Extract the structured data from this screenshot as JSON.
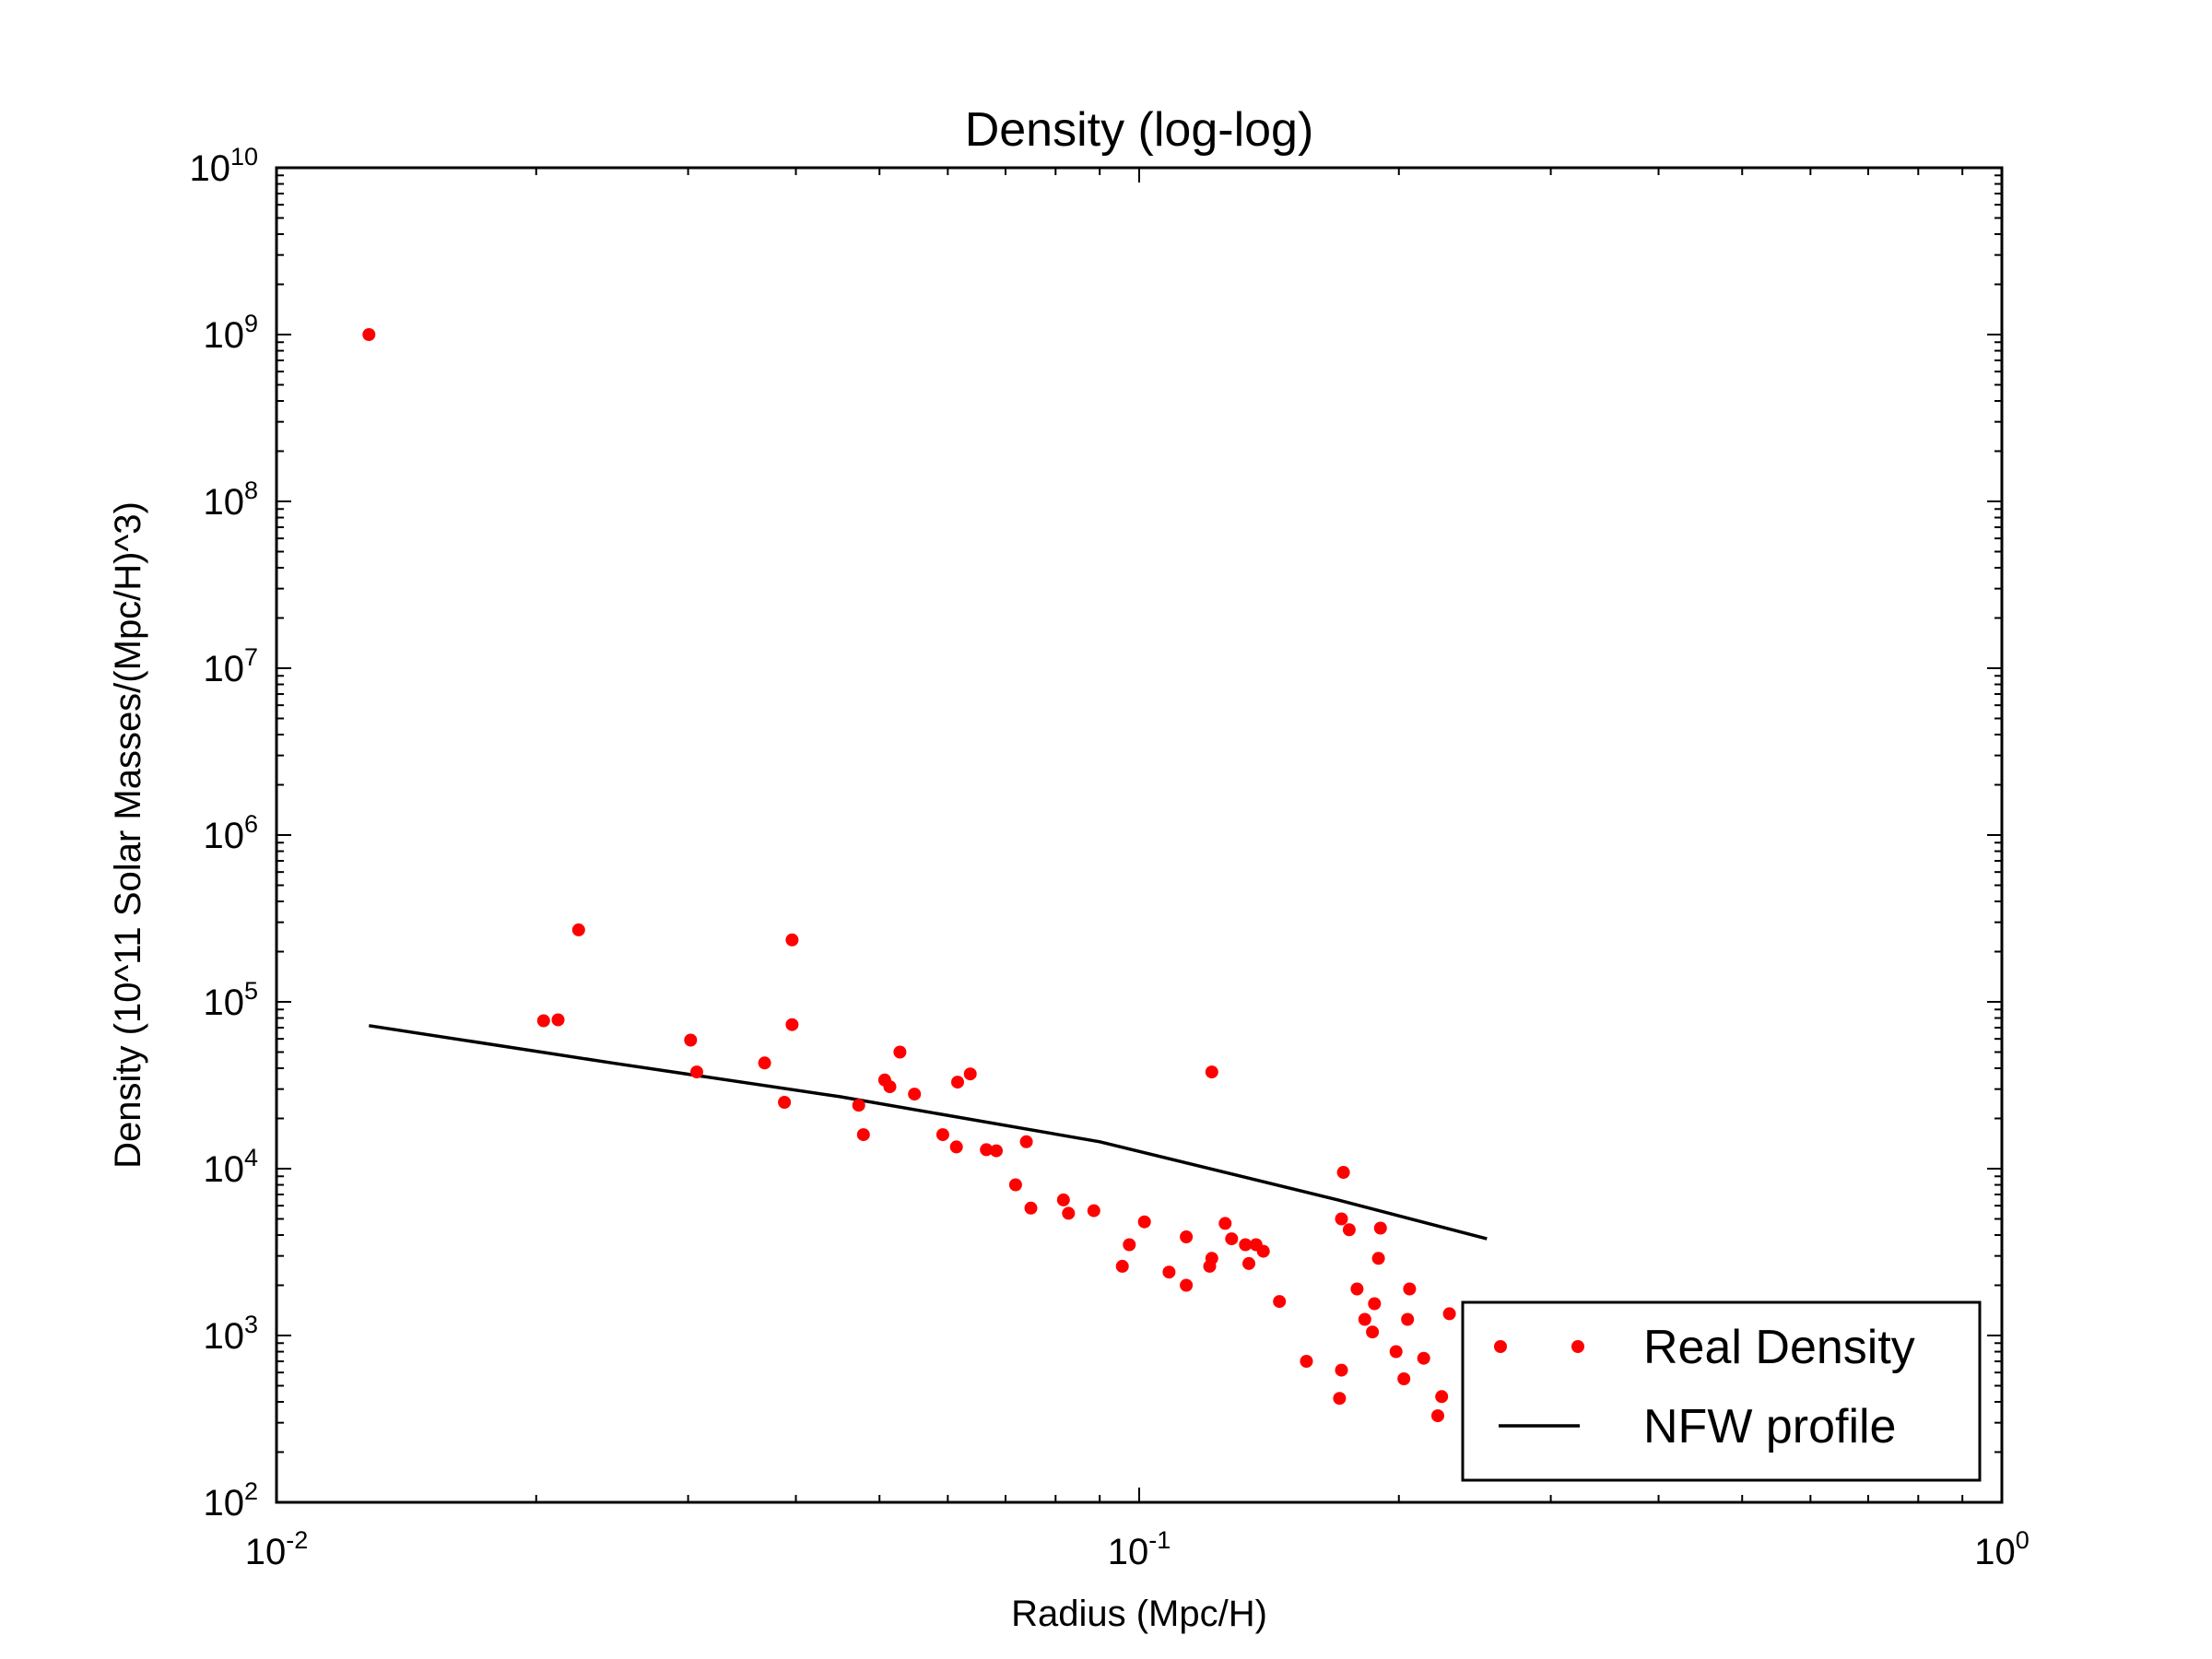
{
  "chart_data": {
    "type": "scatter",
    "title": "Density (log-log)",
    "xlabel": "Radius (Mpc/H)",
    "ylabel": "Density (10^11 Solar Masses/(Mpc/H)^3)",
    "xscale": "log",
    "yscale": "log",
    "xlim": [
      0.01,
      1
    ],
    "ylim": [
      100,
      10000000000
    ],
    "grid": false,
    "legend_position": "bottom-right",
    "x_ticks": [
      {
        "base": "10",
        "exp": "-2",
        "value": 0.01
      },
      {
        "base": "10",
        "exp": "-1",
        "value": 0.1
      },
      {
        "base": "10",
        "exp": "0",
        "value": 1
      }
    ],
    "y_ticks": [
      {
        "base": "10",
        "exp": "2",
        "value": 100
      },
      {
        "base": "10",
        "exp": "3",
        "value": 1000
      },
      {
        "base": "10",
        "exp": "4",
        "value": 10000
      },
      {
        "base": "10",
        "exp": "5",
        "value": 100000
      },
      {
        "base": "10",
        "exp": "6",
        "value": 1000000
      },
      {
        "base": "10",
        "exp": "7",
        "value": 10000000
      },
      {
        "base": "10",
        "exp": "8",
        "value": 100000000
      },
      {
        "base": "10",
        "exp": "9",
        "value": 1000000000
      },
      {
        "base": "10",
        "exp": "10",
        "value": 10000000000
      }
    ],
    "series": [
      {
        "name": "Real Density",
        "kind": "points",
        "color": "#ff0000",
        "points": [
          [
            0.0128,
            1000000000
          ],
          [
            0.0204,
            77000
          ],
          [
            0.0212,
            78000
          ],
          [
            0.0224,
            270000
          ],
          [
            0.0302,
            59000
          ],
          [
            0.0307,
            38000
          ],
          [
            0.0368,
            43000
          ],
          [
            0.0388,
            25000
          ],
          [
            0.0396,
            73000
          ],
          [
            0.0396,
            235000
          ],
          [
            0.0473,
            24000
          ],
          [
            0.0479,
            16000
          ],
          [
            0.0507,
            34000
          ],
          [
            0.0514,
            31000
          ],
          [
            0.0528,
            50000
          ],
          [
            0.0549,
            28000
          ],
          [
            0.0592,
            16000
          ],
          [
            0.0614,
            13500
          ],
          [
            0.0616,
            33000
          ],
          [
            0.0637,
            37000
          ],
          [
            0.0665,
            13000
          ],
          [
            0.0683,
            12800
          ],
          [
            0.074,
            14500
          ],
          [
            0.0719,
            8000
          ],
          [
            0.0749,
            5800
          ],
          [
            0.0817,
            6500
          ],
          [
            0.0828,
            5400
          ],
          [
            0.0886,
            5600
          ],
          [
            0.0956,
            2600
          ],
          [
            0.0974,
            3500
          ],
          [
            0.1014,
            4800
          ],
          [
            0.1083,
            2400
          ],
          [
            0.1134,
            2000
          ],
          [
            0.1134,
            3900
          ],
          [
            0.1207,
            2600
          ],
          [
            0.1214,
            2900
          ],
          [
            0.1214,
            38000
          ],
          [
            0.1258,
            4700
          ],
          [
            0.128,
            3800
          ],
          [
            0.1328,
            3500
          ],
          [
            0.134,
            2700
          ],
          [
            0.1366,
            3500
          ],
          [
            0.1393,
            3200
          ],
          [
            0.1454,
            1600
          ],
          [
            0.1563,
            700
          ],
          [
            0.1707,
            420
          ],
          [
            0.1716,
            620
          ],
          [
            0.1716,
            5000
          ],
          [
            0.1725,
            9500
          ],
          [
            0.1752,
            4300
          ],
          [
            0.1789,
            1900
          ],
          [
            0.1826,
            1250
          ],
          [
            0.1864,
            1050
          ],
          [
            0.1874,
            1550
          ],
          [
            0.1894,
            2900
          ],
          [
            0.1904,
            4400
          ],
          [
            0.1985,
            800
          ],
          [
            0.2027,
            550
          ],
          [
            0.2047,
            1250
          ],
          [
            0.2058,
            1900
          ],
          [
            0.2137,
            730
          ],
          [
            0.2219,
            330
          ],
          [
            0.2242,
            430
          ],
          [
            0.2289,
            1350
          ],
          [
            0.2425,
            440
          ]
        ]
      },
      {
        "name": "NFW profile",
        "kind": "line",
        "color": "#000000",
        "points": [
          [
            0.0128,
            72000
          ],
          [
            0.0245,
            43000
          ],
          [
            0.045,
            27000
          ],
          [
            0.09,
            14500
          ],
          [
            0.17,
            6500
          ],
          [
            0.253,
            3800
          ]
        ]
      }
    ]
  }
}
